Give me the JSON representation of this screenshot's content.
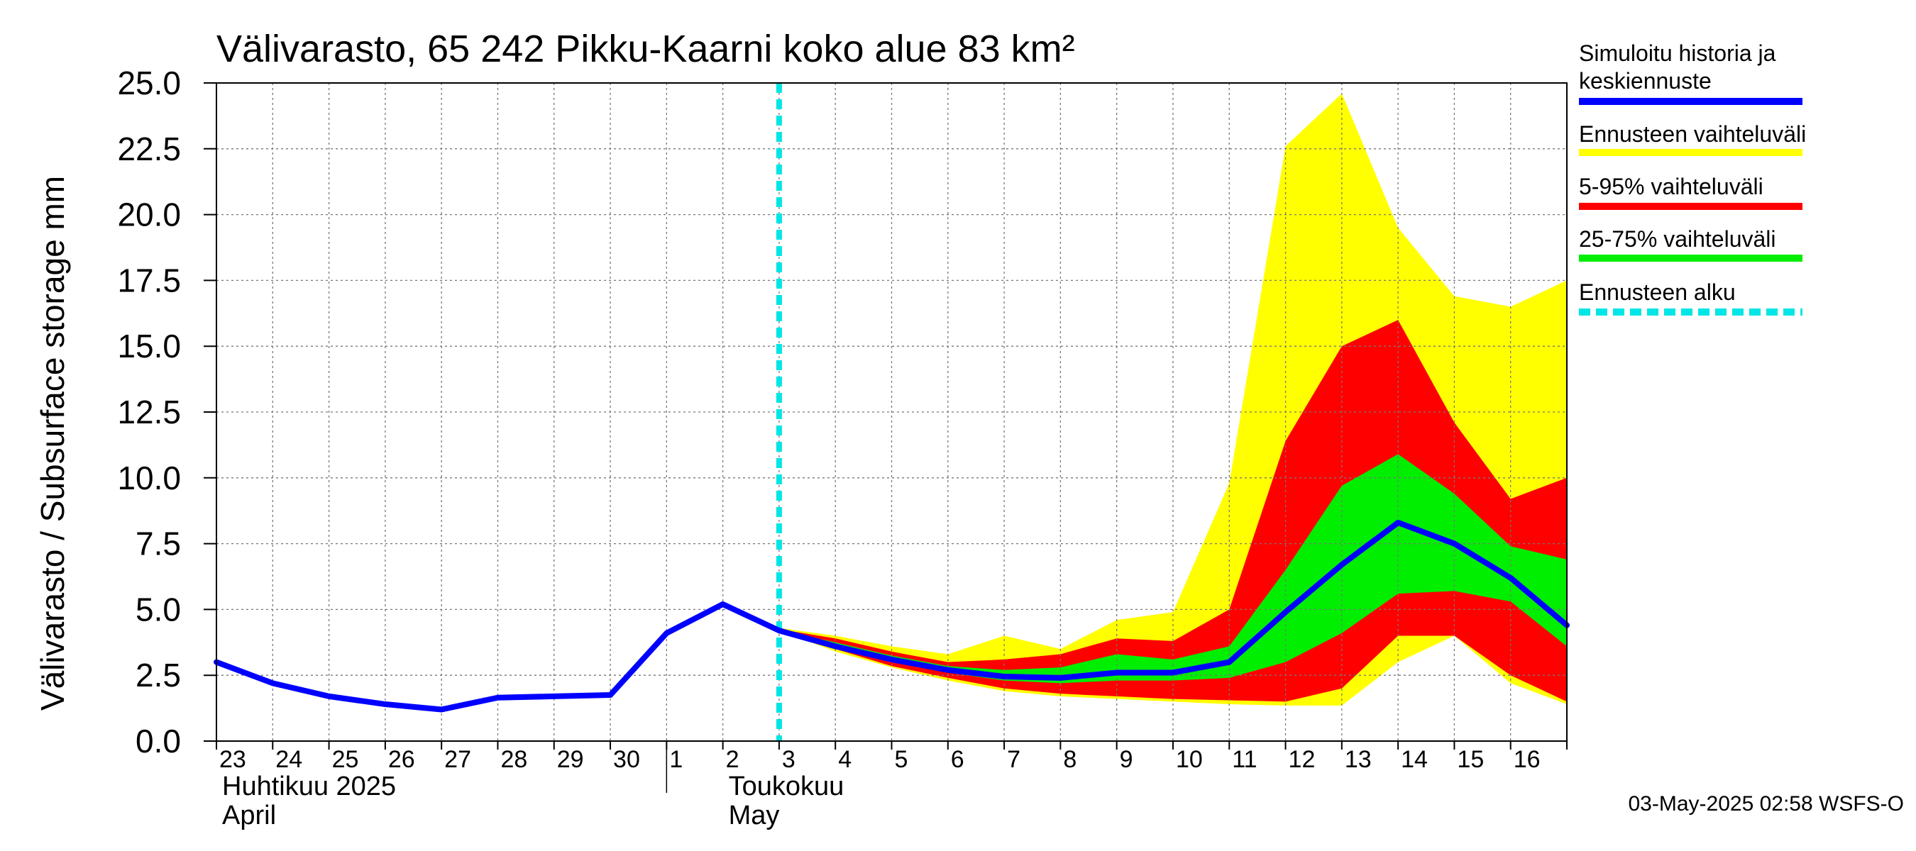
{
  "chart_data": {
    "type": "area",
    "title": "Välivarasto, 65 242 Pikku-Kaarni koko alue 83 km²",
    "ylabel": "Välivarasto / Subsurface storage  mm",
    "ylim": [
      0,
      25
    ],
    "yticks": [
      "0.0",
      "2.5",
      "5.0",
      "7.5",
      "10.0",
      "12.5",
      "15.0",
      "17.5",
      "20.0",
      "22.5",
      "25.0"
    ],
    "x_day_range": [
      0,
      24
    ],
    "x_tick_labels": [
      "23",
      "24",
      "25",
      "26",
      "27",
      "28",
      "29",
      "30",
      "1",
      "2",
      "3",
      "4",
      "5",
      "6",
      "7",
      "8",
      "9",
      "10",
      "11",
      "12",
      "13",
      "14",
      "15",
      "16"
    ],
    "month_labels": [
      {
        "line1": "Huhtikuu  2025",
        "line2": "April",
        "day": 0
      },
      {
        "line1": "Toukokuu",
        "line2": "May",
        "day": 9
      }
    ],
    "month_divider_day": 8,
    "forecast_start_day": 10,
    "history": {
      "name": "Simuloitu historia ja keskiennuste",
      "x": [
        0,
        1,
        2,
        3,
        4,
        5,
        6,
        7,
        8,
        9,
        10
      ],
      "y": [
        3.0,
        2.2,
        1.7,
        1.4,
        1.2,
        1.65,
        1.7,
        1.75,
        4.1,
        5.2,
        4.2
      ]
    },
    "forecast_x": [
      10,
      11,
      12,
      13,
      14,
      15,
      16,
      17,
      18,
      19,
      20,
      21,
      22,
      23,
      24
    ],
    "forecast_median": [
      4.2,
      3.6,
      3.1,
      2.7,
      2.45,
      2.4,
      2.6,
      2.6,
      3.0,
      4.9,
      6.7,
      8.3,
      7.5,
      6.2,
      4.4
    ],
    "bands": [
      {
        "name": "Ennusteen vaihteluväli",
        "color": "#ffff00",
        "upper": [
          4.3,
          4.0,
          3.6,
          3.3,
          4.0,
          3.5,
          4.6,
          4.9,
          9.8,
          22.6,
          24.6,
          19.5,
          16.9,
          16.5,
          17.5
        ],
        "lower": [
          4.2,
          3.4,
          2.8,
          2.3,
          1.9,
          1.7,
          1.6,
          1.5,
          1.4,
          1.35,
          1.35,
          3.0,
          4.0,
          2.2,
          1.4
        ]
      },
      {
        "name": "5-95% vaihteluväli",
        "color": "#ff0000",
        "upper": [
          4.25,
          3.9,
          3.4,
          3.0,
          3.1,
          3.3,
          3.9,
          3.8,
          5.0,
          11.4,
          15.0,
          16.0,
          12.1,
          9.2,
          10.0
        ],
        "lower": [
          4.2,
          3.5,
          2.85,
          2.4,
          2.0,
          1.8,
          1.7,
          1.6,
          1.55,
          1.5,
          2.0,
          4.0,
          4.0,
          2.5,
          1.5
        ]
      },
      {
        "name": "25-75% vaihteluväli",
        "color": "#00ee00",
        "upper": [
          4.22,
          3.75,
          3.25,
          2.85,
          2.7,
          2.8,
          3.3,
          3.1,
          3.6,
          6.5,
          9.7,
          10.9,
          9.4,
          7.4,
          6.9
        ],
        "lower": [
          4.2,
          3.55,
          3.0,
          2.6,
          2.3,
          2.2,
          2.3,
          2.3,
          2.4,
          3.0,
          4.1,
          5.6,
          5.7,
          5.3,
          3.6
        ]
      }
    ],
    "legend": [
      {
        "label_lines": [
          "Simuloitu historia ja",
          "keskiennuste"
        ],
        "color": "#0000ff",
        "style": "solid"
      },
      {
        "label_lines": [
          "Ennusteen vaihteluväli"
        ],
        "color": "#ffff00",
        "style": "solid"
      },
      {
        "label_lines": [
          "5-95% vaihteluväli"
        ],
        "color": "#ff0000",
        "style": "solid"
      },
      {
        "label_lines": [
          "25-75% vaihteluväli"
        ],
        "color": "#00ee00",
        "style": "solid"
      },
      {
        "label_lines": [
          "Ennusteen alku"
        ],
        "color": "#00e5e5",
        "style": "dashed"
      }
    ],
    "legend_position": "right",
    "grid": true,
    "timestamp": "03-May-2025 02:58 WSFS-O"
  }
}
